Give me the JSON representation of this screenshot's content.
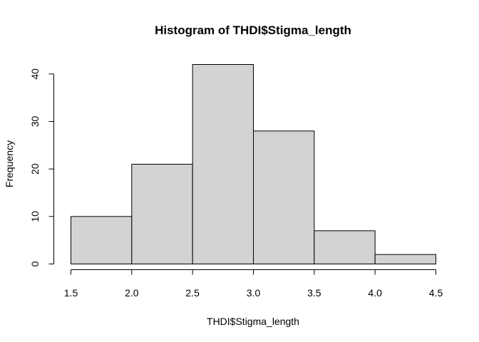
{
  "chart_data": {
    "type": "bar",
    "title": "Histogram of THDI$Stigma_length",
    "xlabel": "THDI$Stigma_length",
    "ylabel": "Frequency",
    "bins": [
      {
        "x0": 1.5,
        "x1": 2.0,
        "count": 10
      },
      {
        "x0": 2.0,
        "x1": 2.5,
        "count": 21
      },
      {
        "x0": 2.5,
        "x1": 3.0,
        "count": 42
      },
      {
        "x0": 3.0,
        "x1": 3.5,
        "count": 28
      },
      {
        "x0": 3.5,
        "x1": 4.0,
        "count": 7
      },
      {
        "x0": 4.0,
        "x1": 4.5,
        "count": 2
      }
    ],
    "xlim": [
      1.5,
      4.5
    ],
    "ylim": [
      0,
      42
    ],
    "x_ticks": [
      "1.5",
      "2.0",
      "2.5",
      "3.0",
      "3.5",
      "4.0",
      "4.5"
    ],
    "y_ticks": [
      "0",
      "10",
      "20",
      "30",
      "40"
    ],
    "grid": false,
    "bar_color": "#d3d3d3",
    "edge_color": "#000000"
  }
}
